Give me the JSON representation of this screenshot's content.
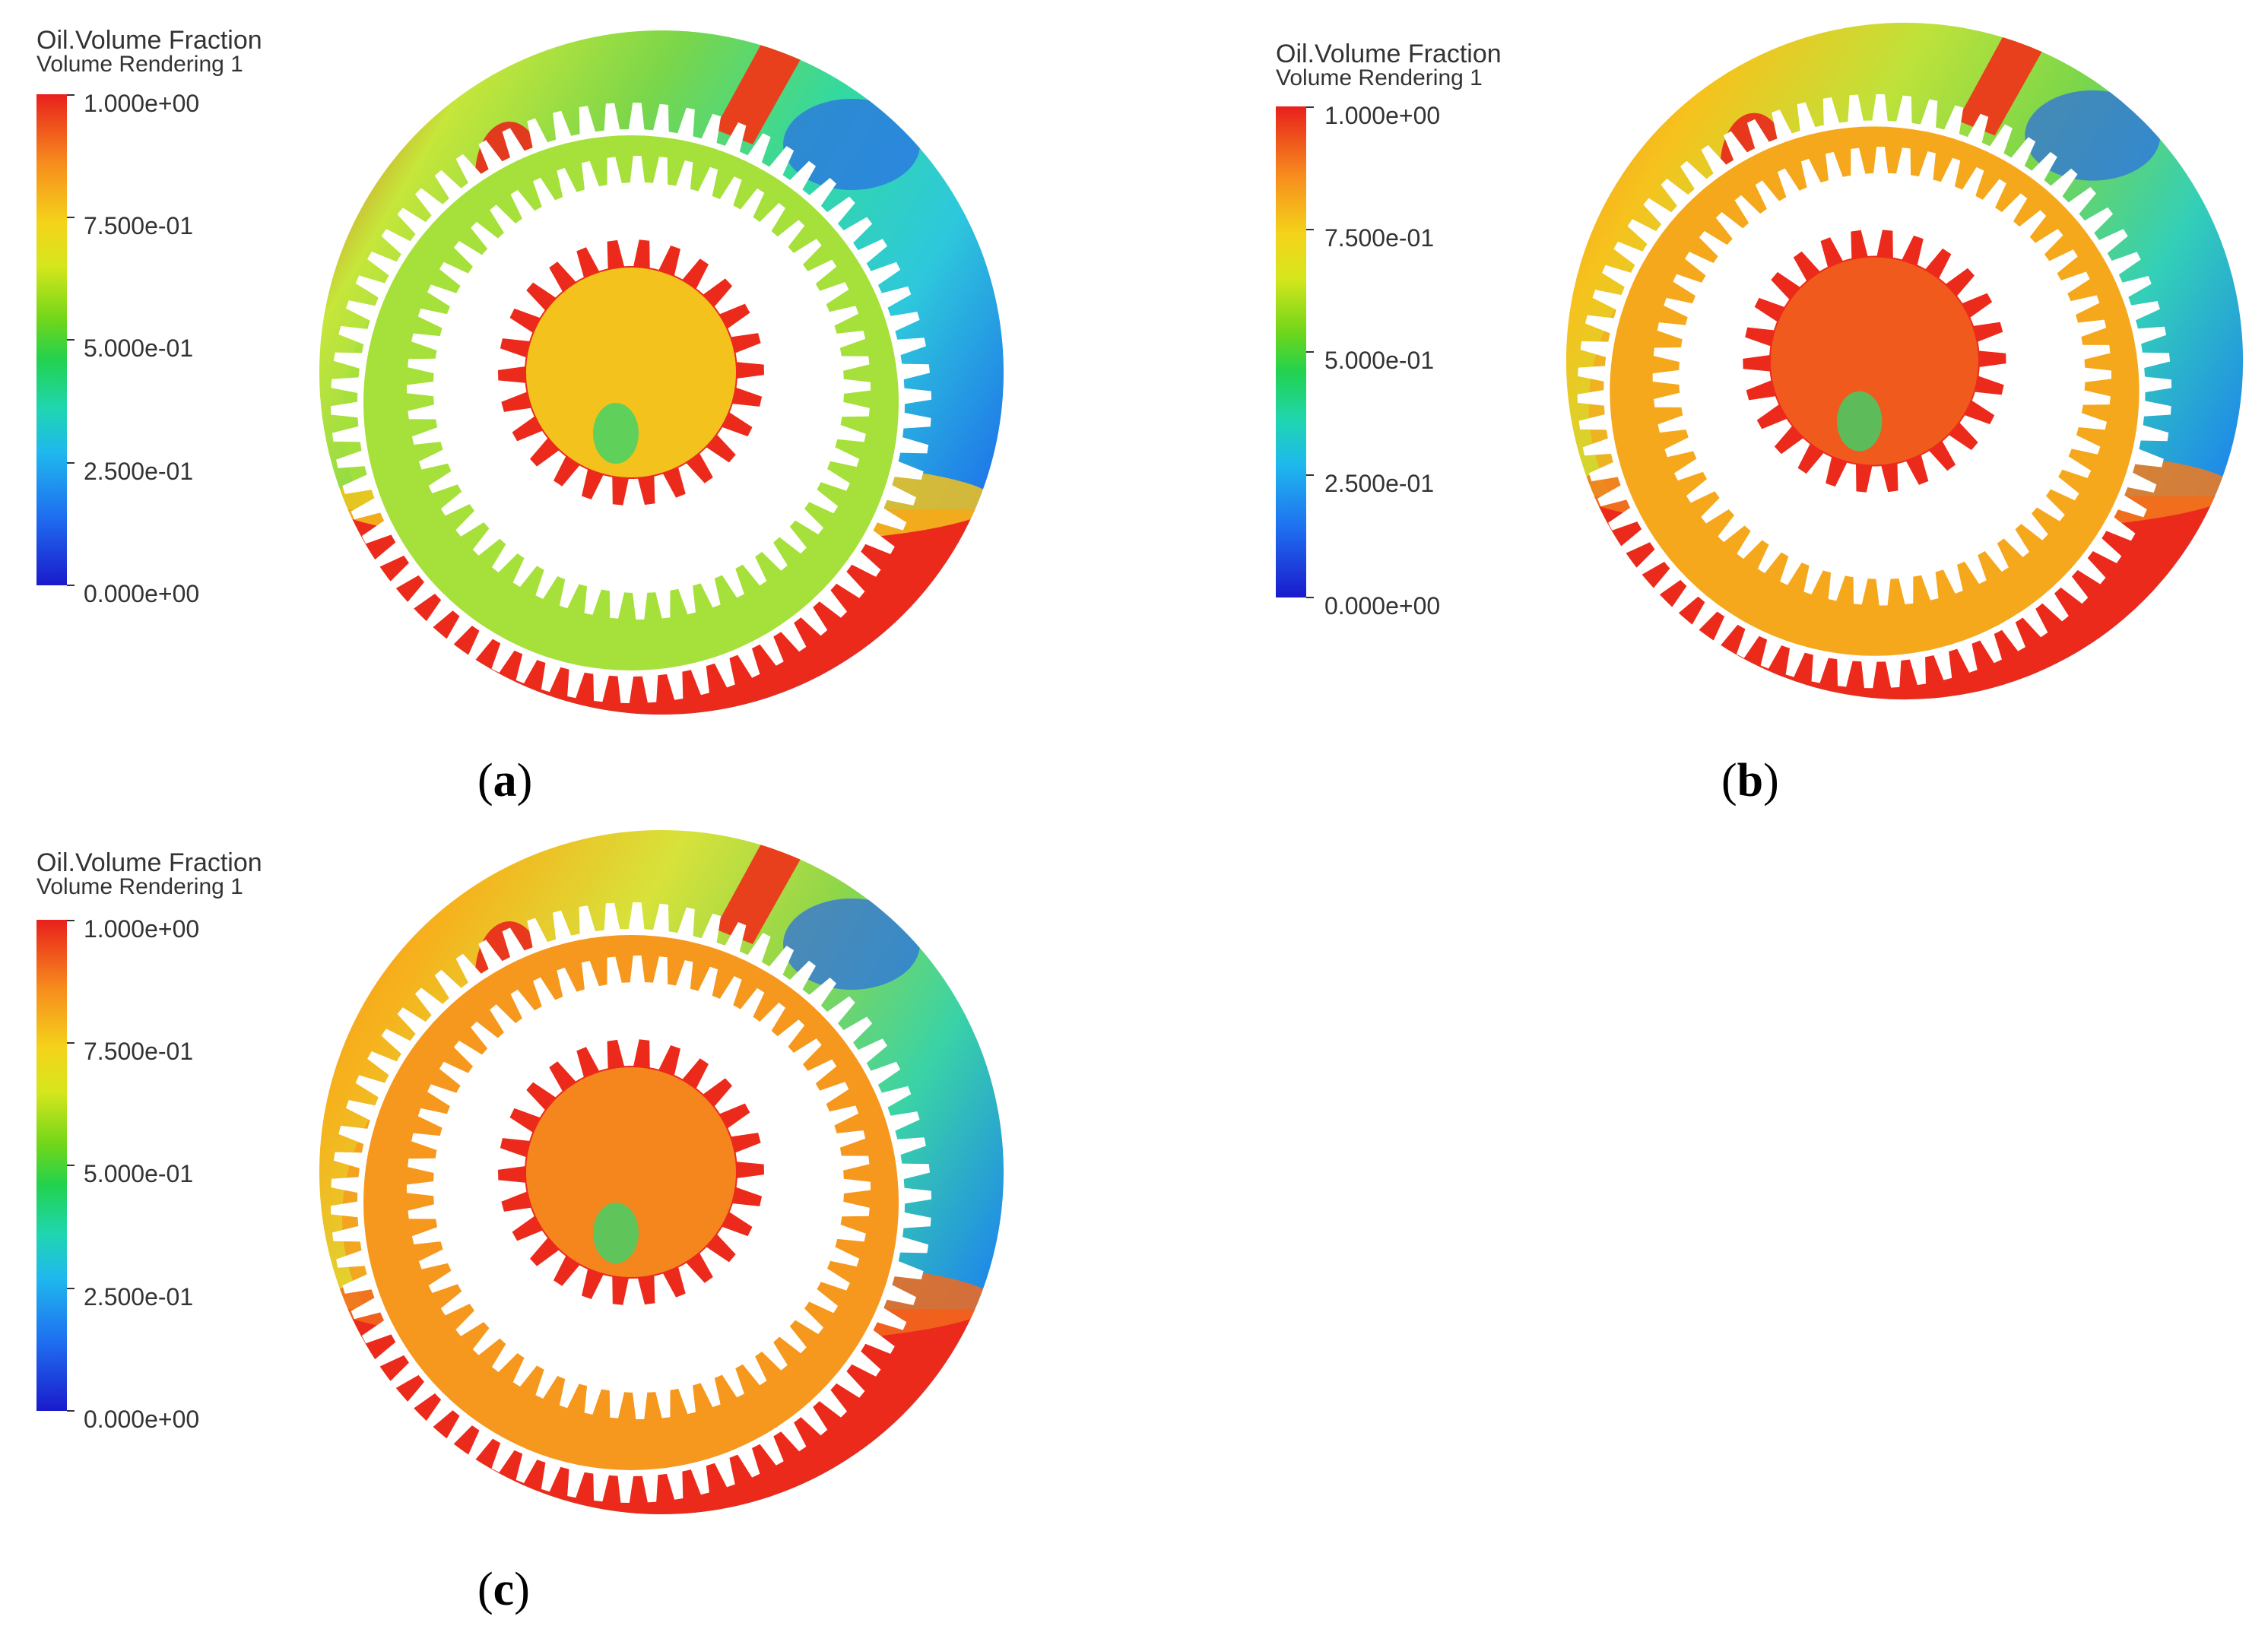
{
  "panels": [
    {
      "id": "a",
      "caption_open": "(",
      "caption_letter": "a",
      "caption_close": ")",
      "legend_title": "Oil.Volume Fraction",
      "legend_subtitle": "Volume Rendering 1",
      "legend_ticks": [
        "1.000e+00",
        "7.500e-01",
        "5.000e-01",
        "2.500e-01",
        "0.000e+00"
      ]
    },
    {
      "id": "b",
      "caption_open": "(",
      "caption_letter": "b",
      "caption_close": ")",
      "legend_title": "Oil.Volume Fraction",
      "legend_subtitle": "Volume Rendering 1",
      "legend_ticks": [
        "1.000e+00",
        "7.500e-01",
        "5.000e-01",
        "2.500e-01",
        "0.000e+00"
      ]
    },
    {
      "id": "c",
      "caption_open": "(",
      "caption_letter": "c",
      "caption_close": ")",
      "legend_title": "Oil.Volume Fraction",
      "legend_subtitle": "Volume Rendering 1",
      "legend_ticks": [
        "1.000e+00",
        "7.500e-01",
        "5.000e-01",
        "2.500e-01",
        "0.000e+00"
      ]
    }
  ],
  "colors": {
    "scale_high": "#e8201c",
    "scale_mid": "#22d24e",
    "scale_low": "#1a1acc",
    "gear_fill": "#ffffff"
  }
}
